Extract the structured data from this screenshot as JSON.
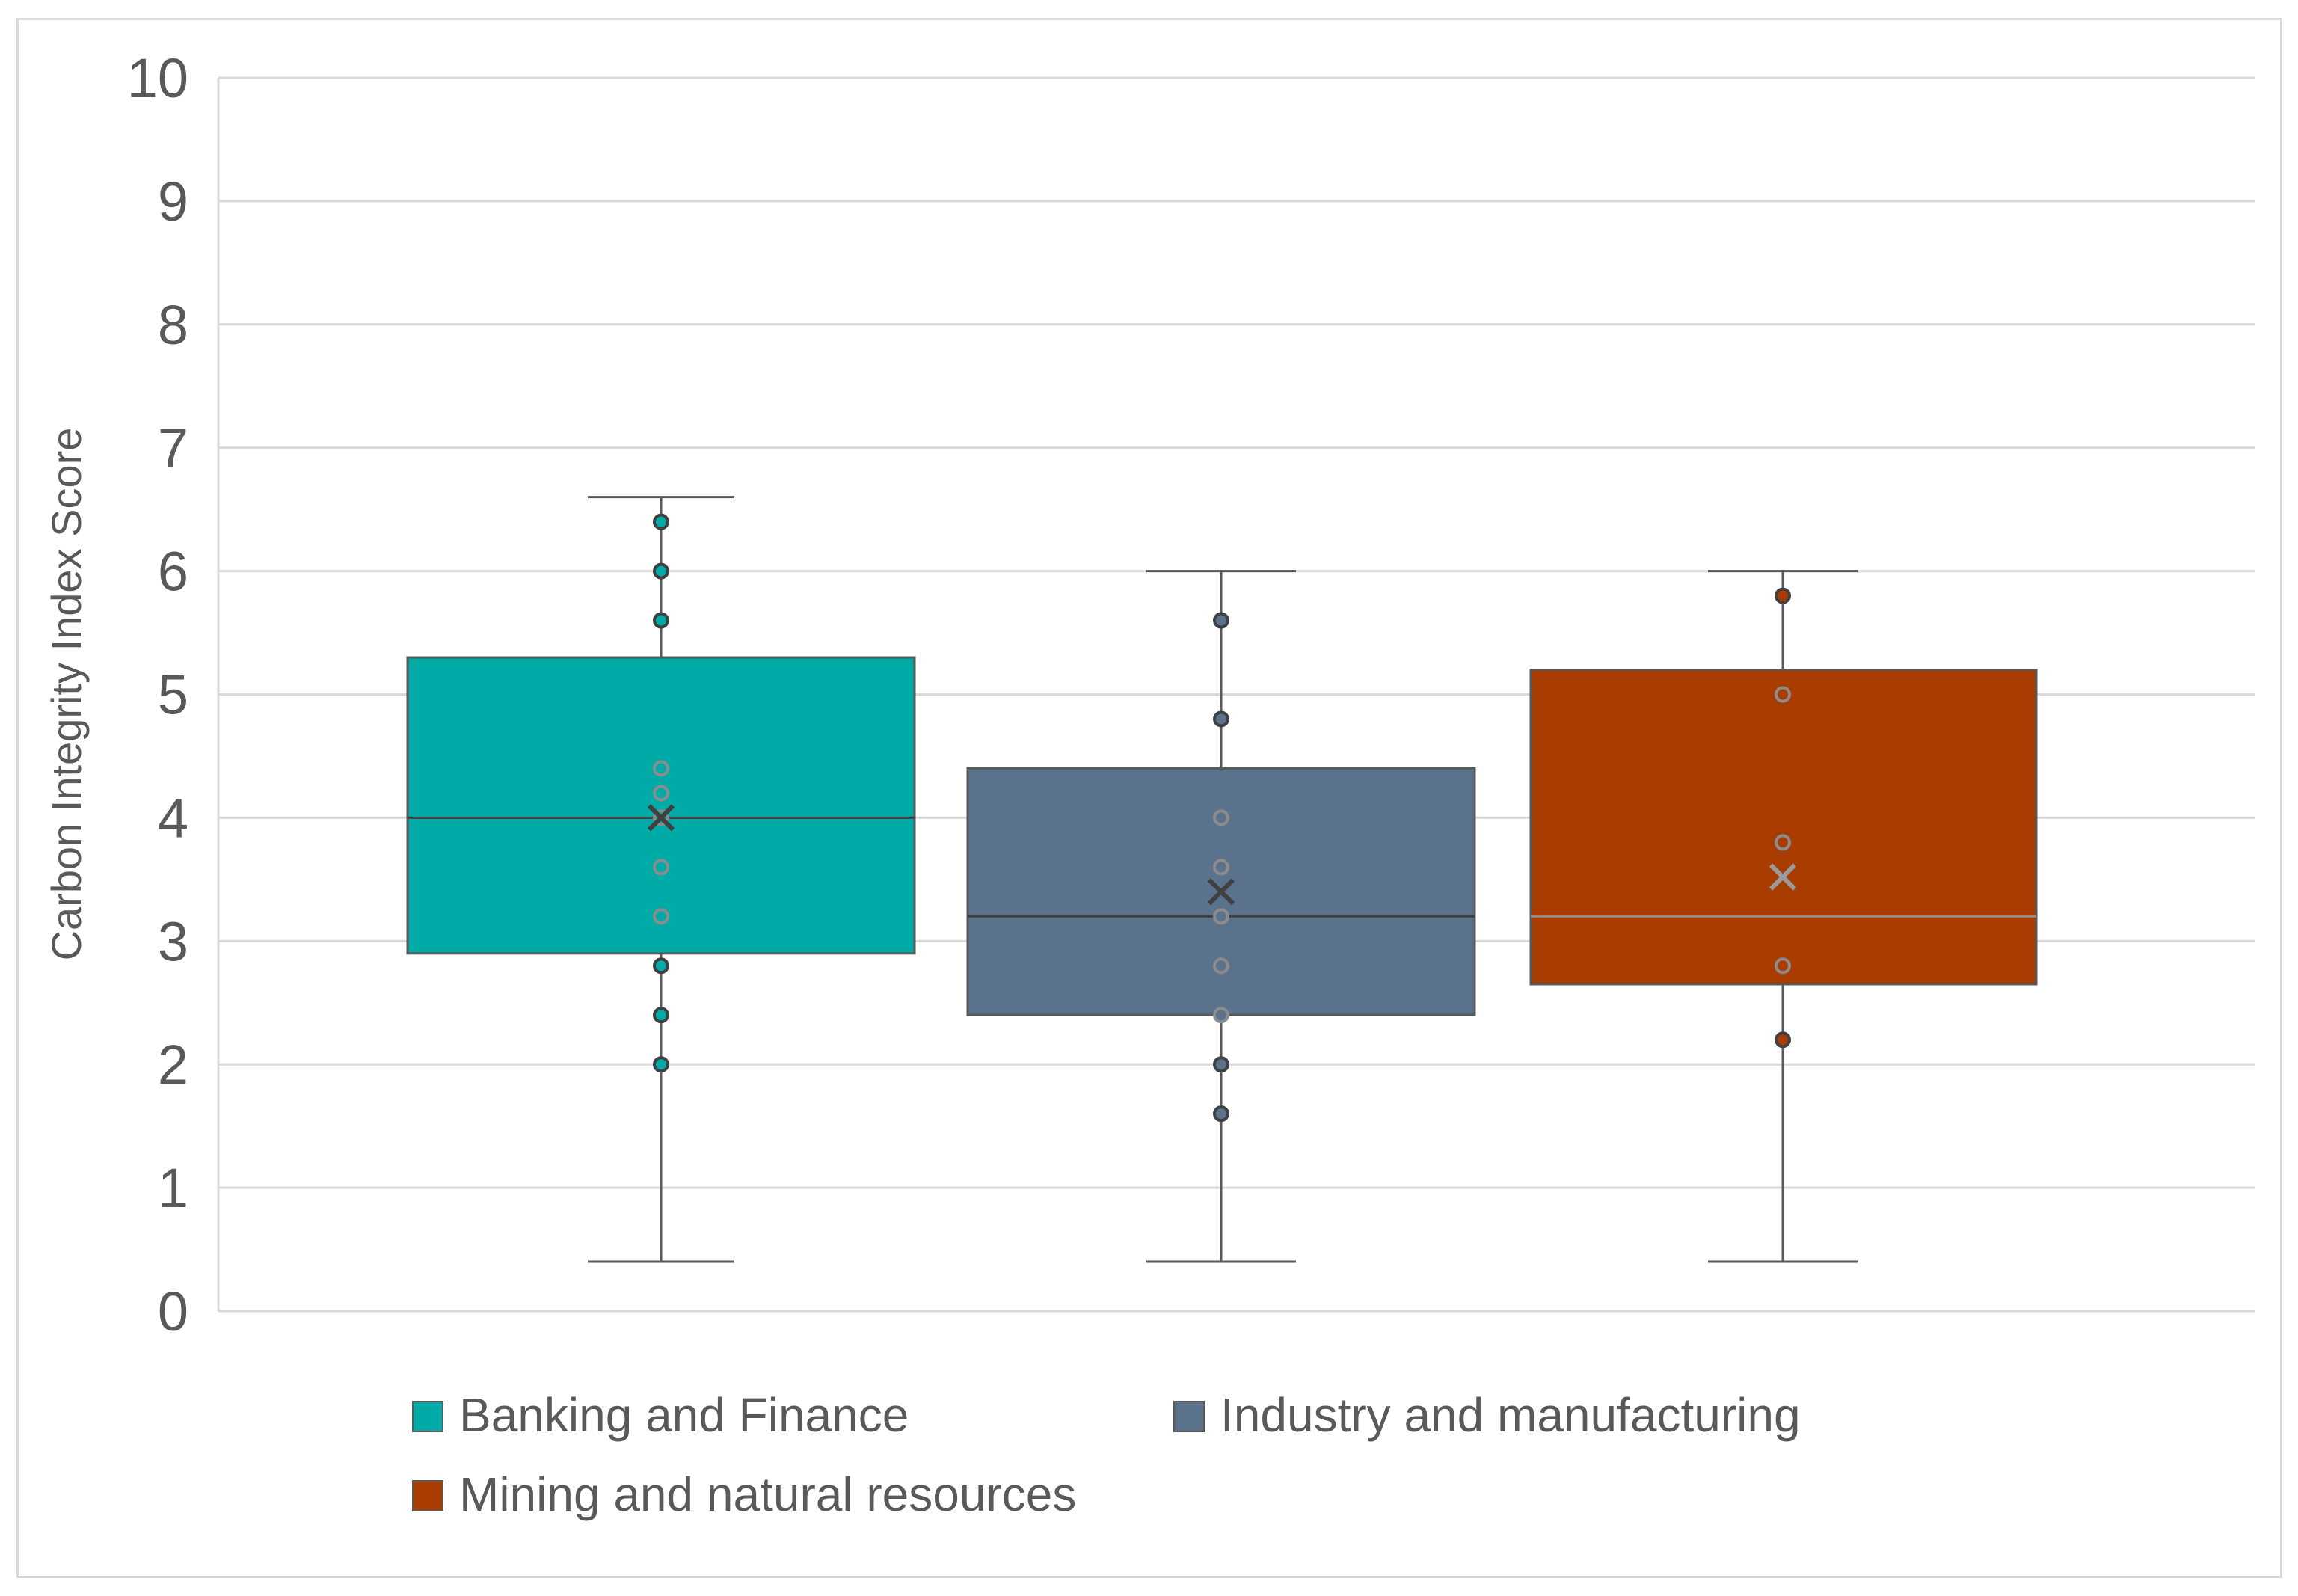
{
  "chart_data": {
    "type": "box",
    "ylabel": "Carbon Integrity Index Score",
    "xlabel": "",
    "ylim": [
      0,
      10
    ],
    "yticks": [
      "0",
      "1",
      "2",
      "3",
      "4",
      "5",
      "6",
      "7",
      "8",
      "9",
      "10"
    ],
    "grid": true,
    "legend_position": "bottom",
    "series": [
      {
        "name": "Banking and Finance",
        "color": "#00aaa7",
        "whisker_low": 0.4,
        "q1": 2.9,
        "median": 4.0,
        "q3": 5.3,
        "whisker_high": 6.6,
        "mean": 4.0,
        "points": [
          6.4,
          6.0,
          5.6,
          4.4,
          4.2,
          4.0,
          3.6,
          3.2,
          2.8,
          2.4,
          2.0
        ]
      },
      {
        "name": "Industry and manufacturing",
        "color": "#5b728c",
        "whisker_low": 0.4,
        "q1": 2.4,
        "median": 3.2,
        "q3": 4.4,
        "whisker_high": 6.0,
        "mean": 3.4,
        "points": [
          5.6,
          4.8,
          4.0,
          3.6,
          3.2,
          2.8,
          2.4,
          2.0,
          1.6
        ]
      },
      {
        "name": "Mining and natural resources",
        "color": "#a93c00",
        "whisker_low": 0.4,
        "q1": 2.65,
        "median": 3.2,
        "q3": 5.2,
        "whisker_high": 6.0,
        "mean": 3.52,
        "points": [
          5.8,
          5.0,
          3.8,
          2.8,
          2.2
        ]
      }
    ]
  }
}
